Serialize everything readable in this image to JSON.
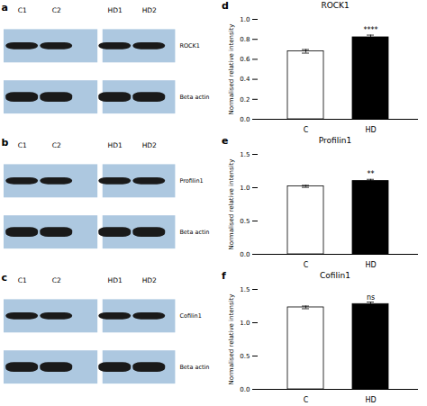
{
  "chart_data": [
    {
      "type": "western_blot",
      "panel_label": "a",
      "row_labels": [
        "ROCK1",
        "Beta actin"
      ],
      "sample_labels": [
        "C1",
        "C2",
        "HD1",
        "HD2"
      ],
      "color": "#adc8e0"
    },
    {
      "type": "western_blot",
      "panel_label": "b",
      "row_labels": [
        "Profilin1",
        "Beta actin"
      ],
      "sample_labels": [
        "C1",
        "C2",
        "HD1",
        "HD2"
      ],
      "color": "#adc8e0"
    },
    {
      "type": "western_blot",
      "panel_label": "c",
      "row_labels": [
        "Cofilin1",
        "Beta actin"
      ],
      "sample_labels": [
        "C1",
        "C2",
        "HD1",
        "HD2"
      ],
      "color": "#adc8e0"
    },
    {
      "type": "bar",
      "panel_label": "d",
      "title": "ROCK1",
      "categories": [
        "C",
        "HD"
      ],
      "values": [
        0.68,
        0.82
      ],
      "errors": [
        0.018,
        0.022
      ],
      "colors": [
        "white",
        "black"
      ],
      "edge_colors": [
        "black",
        "black"
      ],
      "ylabel": "Normalised relative intensity",
      "ylim": [
        0.0,
        1.0
      ],
      "yticks": [
        {
          "value": 0.0,
          "label": "0.0"
        },
        0.2,
        0.4,
        0.6,
        0.8,
        {
          "value": 1.0,
          "label": "1.0"
        }
      ],
      "significance": "****",
      "grid": false
    },
    {
      "type": "bar",
      "panel_label": "e",
      "title": "Profilin1",
      "categories": [
        "C",
        "HD"
      ],
      "values": [
        1.02,
        1.1
      ],
      "errors": [
        0.015,
        0.025
      ],
      "colors": [
        "white",
        "black"
      ],
      "edge_colors": [
        "black",
        "black"
      ],
      "ylabel": "Normalised relative intensity",
      "ylim": [
        0.0,
        1.5
      ],
      "yticks": [
        {
          "value": 0.0,
          "label": "0.0"
        },
        0.5,
        {
          "value": 1.0,
          "label": "1.0"
        },
        1.5
      ],
      "significance": "**",
      "grid": false
    },
    {
      "type": "bar",
      "panel_label": "f",
      "title": "Cofilin1",
      "categories": [
        "C",
        "HD"
      ],
      "values": [
        1.23,
        1.28
      ],
      "errors": [
        0.02,
        0.03
      ],
      "colors": [
        "white",
        "black"
      ],
      "edge_colors": [
        "black",
        "black"
      ],
      "ylabel": "Normalised relative intensity",
      "ylim": [
        0.0,
        1.5
      ],
      "yticks": [
        {
          "value": 0.0,
          "label": "0.0"
        },
        0.5,
        {
          "value": 1.0,
          "label": "1.0"
        },
        1.5
      ],
      "significance": "ns",
      "grid": false
    }
  ]
}
